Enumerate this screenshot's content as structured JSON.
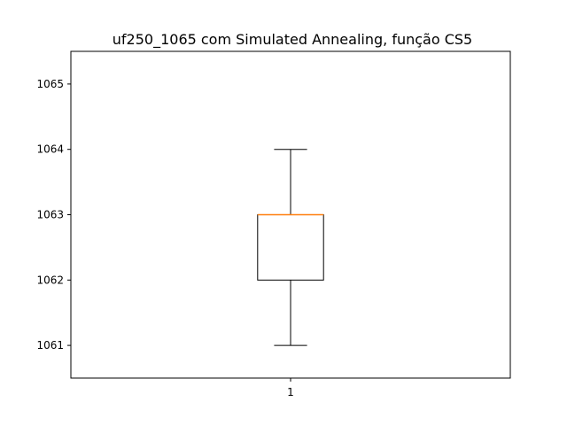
{
  "chart_data": {
    "type": "box",
    "title": "uf250_1065 com Simulated Annealing, função CS5",
    "xlabel": "",
    "ylabel": "",
    "categories": [
      "1"
    ],
    "ylim": [
      1060.5,
      1065.5
    ],
    "yticks": [
      1061,
      1062,
      1063,
      1064,
      1065
    ],
    "boxes": [
      {
        "label": "1",
        "whisker_low": 1061,
        "q1": 1062,
        "median": 1063,
        "q3": 1063,
        "whisker_high": 1064
      }
    ],
    "colors": {
      "box": "#000000",
      "median": "#ff7f0e"
    },
    "grid": false,
    "legend": "none"
  }
}
